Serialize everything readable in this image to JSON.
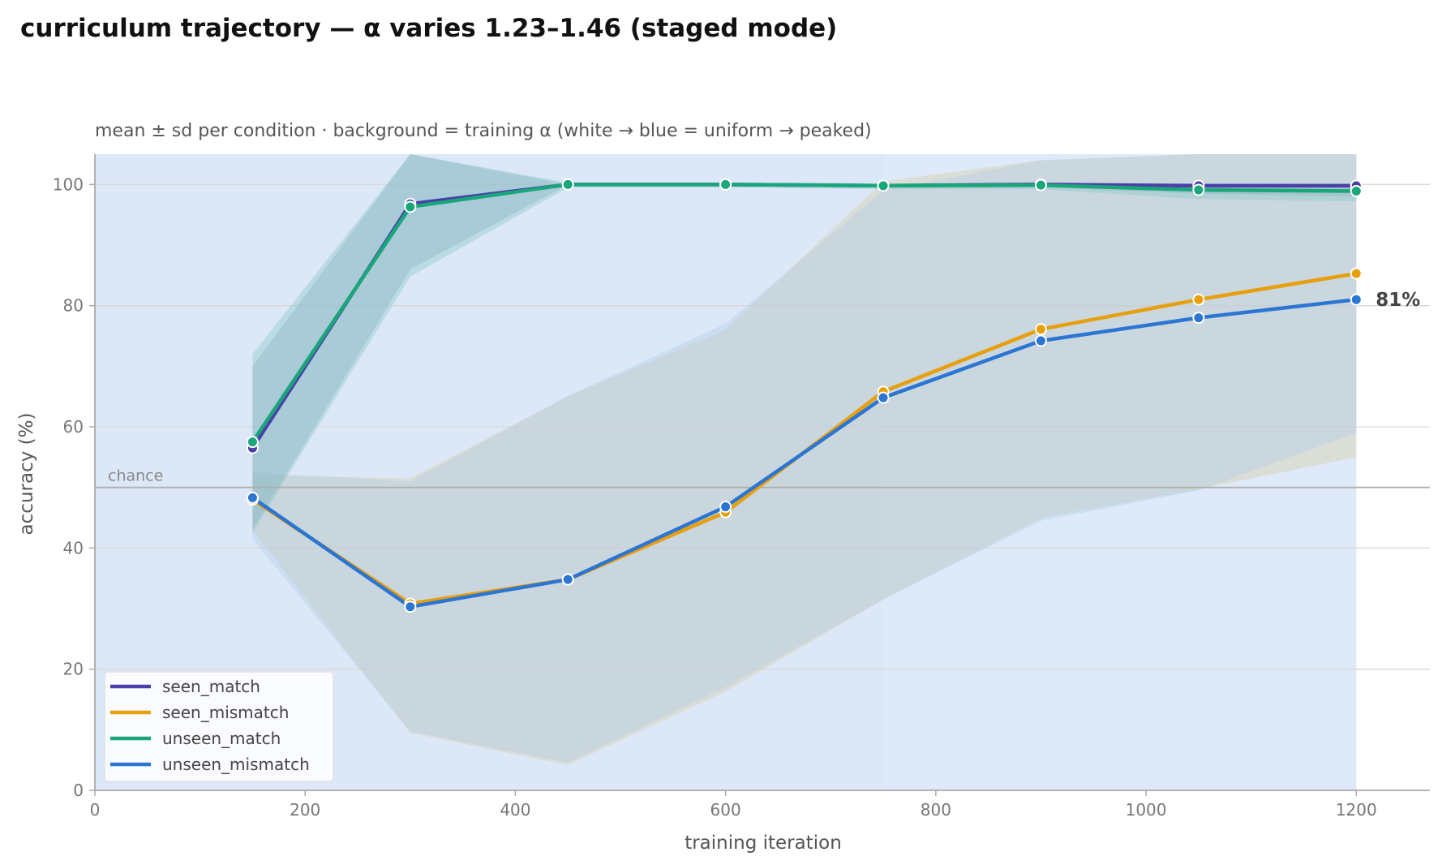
{
  "chart_data": {
    "type": "line",
    "title": "curriculum trajectory — α varies 1.23–1.46 (staged mode)",
    "subtitle": "mean ± sd per condition · background = training α (white → blue = uniform → peaked)",
    "xlabel": "training iteration",
    "ylabel": "accuracy (%)",
    "xlim": [
      0,
      1270
    ],
    "ylim": [
      0,
      105
    ],
    "xticks": [
      0,
      200,
      400,
      600,
      800,
      1000,
      1200
    ],
    "yticks": [
      0,
      20,
      40,
      60,
      80,
      100
    ],
    "grid": "horizontal",
    "legend_position": "lower-left",
    "reference_line": {
      "y": 50,
      "label": "chance"
    },
    "end_annotation": {
      "series": "unseen_mismatch",
      "text": "81%"
    },
    "background_alpha": [
      {
        "x_start": 0,
        "x_end": 750,
        "color": "#dce8f8"
      },
      {
        "x_start": 750,
        "x_end": 1200,
        "color": "#deeaf9"
      }
    ],
    "x": [
      150,
      300,
      450,
      600,
      750,
      900,
      1050,
      1200
    ],
    "series": [
      {
        "name": "seen_match",
        "color": "#4a3fa8",
        "values": [
          56.5,
          96.8,
          100,
          100,
          99.8,
          100,
          99.8,
          99.8
        ],
        "lower": [
          43,
          86,
          100,
          100,
          99.5,
          99.5,
          98.5,
          98
        ],
        "upper": [
          70,
          107,
          100,
          100,
          100,
          100,
          100,
          100
        ]
      },
      {
        "name": "seen_mismatch",
        "color": "#e89f0c",
        "values": [
          48,
          30.8,
          34.8,
          45.9,
          65.8,
          76.1,
          81,
          85.3
        ],
        "lower": [
          43,
          9.5,
          4.2,
          16.3,
          31.5,
          45,
          49.7,
          55
        ],
        "upper": [
          52,
          51.5,
          65,
          76,
          100.5,
          104,
          105.5,
          105.5
        ]
      },
      {
        "name": "unseen_match",
        "color": "#1aa67a",
        "values": [
          57.5,
          96.3,
          100,
          100,
          99.8,
          99.9,
          99.1,
          98.9
        ],
        "lower": [
          42.5,
          84.8,
          99.5,
          99.5,
          99.2,
          99.2,
          97.6,
          97.2
        ],
        "upper": [
          72,
          107,
          100.3,
          100.3,
          100.2,
          100.2,
          100.2,
          100.2
        ]
      },
      {
        "name": "unseen_mismatch",
        "color": "#2b75d3",
        "values": [
          48.3,
          30.3,
          34.8,
          46.8,
          64.8,
          74.2,
          78,
          81
        ],
        "lower": [
          41.5,
          9.7,
          4.6,
          17,
          31.5,
          44.5,
          49.5,
          59
        ],
        "upper": [
          52.5,
          51,
          65.1,
          77,
          99,
          104,
          105.5,
          105.5
        ]
      }
    ]
  }
}
